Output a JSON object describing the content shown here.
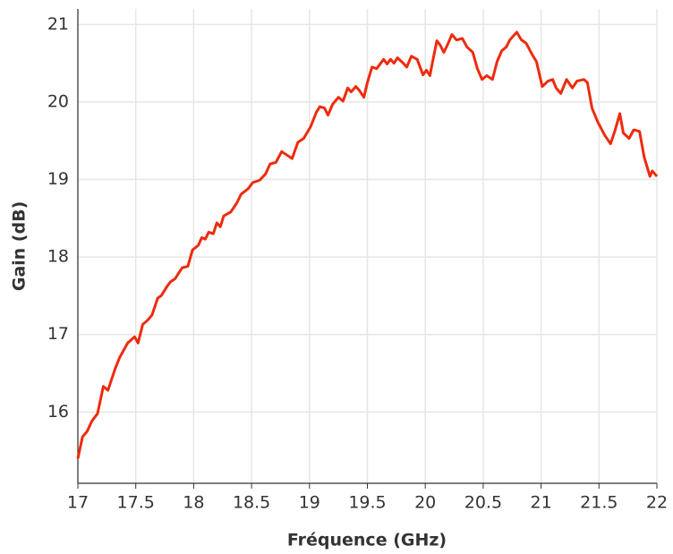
{
  "chart_data": {
    "type": "line",
    "xlabel": "Fréquence (GHz)",
    "ylabel": "Gain (dB)",
    "xlim": [
      17,
      22
    ],
    "ylim": [
      15.08,
      21.2
    ],
    "xticks": [
      17,
      17.5,
      18,
      18.5,
      19,
      19.5,
      20,
      20.5,
      21,
      21.5,
      22
    ],
    "yticks": [
      16,
      17,
      18,
      19,
      20,
      21
    ],
    "grid": true,
    "x": [
      17.0,
      17.04,
      17.08,
      17.12,
      17.17,
      17.22,
      17.26,
      17.32,
      17.36,
      17.43,
      17.46,
      17.49,
      17.52,
      17.56,
      17.6,
      17.64,
      17.69,
      17.72,
      17.77,
      17.8,
      17.84,
      17.9,
      17.95,
      17.99,
      18.04,
      18.07,
      18.1,
      18.13,
      18.17,
      18.2,
      18.23,
      18.26,
      18.32,
      18.37,
      18.41,
      18.47,
      18.51,
      18.57,
      18.62,
      18.66,
      18.71,
      18.76,
      18.8,
      18.85,
      18.9,
      18.95,
      19.01,
      19.06,
      19.09,
      19.13,
      19.16,
      19.2,
      19.25,
      19.29,
      19.33,
      19.36,
      19.4,
      19.43,
      19.47,
      19.5,
      19.54,
      19.58,
      19.64,
      19.67,
      19.7,
      19.73,
      19.76,
      19.81,
      19.84,
      19.88,
      19.93,
      19.98,
      20.01,
      20.04,
      20.07,
      20.1,
      20.13,
      20.16,
      20.19,
      20.23,
      20.27,
      20.32,
      20.36,
      20.41,
      20.45,
      20.49,
      20.53,
      20.58,
      20.62,
      20.66,
      20.7,
      20.73,
      20.76,
      20.79,
      20.83,
      20.87,
      20.92,
      20.96,
      21.01,
      21.06,
      21.1,
      21.13,
      21.17,
      21.22,
      21.27,
      21.31,
      21.37,
      21.4,
      21.44,
      21.49,
      21.55,
      21.6,
      21.64,
      21.68,
      21.71,
      21.76,
      21.8,
      21.85,
      21.89,
      21.94,
      21.96,
      22.0
    ],
    "series": [
      {
        "name": "Gain",
        "color": "#ee2b0e",
        "values": [
          15.4,
          15.68,
          15.75,
          15.88,
          15.98,
          16.33,
          16.28,
          16.55,
          16.7,
          16.89,
          16.93,
          16.97,
          16.89,
          17.13,
          17.18,
          17.25,
          17.47,
          17.5,
          17.62,
          17.68,
          17.72,
          17.86,
          17.88,
          18.09,
          18.15,
          18.25,
          18.23,
          18.32,
          18.3,
          18.44,
          18.39,
          18.53,
          18.58,
          18.69,
          18.81,
          18.88,
          18.96,
          18.99,
          19.07,
          19.2,
          19.22,
          19.36,
          19.32,
          19.27,
          19.48,
          19.53,
          19.68,
          19.87,
          19.94,
          19.92,
          19.83,
          19.97,
          20.06,
          20.01,
          20.18,
          20.13,
          20.2,
          20.15,
          20.06,
          20.25,
          20.45,
          20.43,
          20.55,
          20.49,
          20.55,
          20.5,
          20.57,
          20.5,
          20.45,
          20.59,
          20.55,
          20.35,
          20.41,
          20.34,
          20.57,
          20.79,
          20.73,
          20.64,
          20.73,
          20.87,
          20.8,
          20.82,
          20.71,
          20.64,
          20.43,
          20.29,
          20.34,
          20.29,
          20.52,
          20.66,
          20.71,
          20.8,
          20.85,
          20.9,
          20.8,
          20.76,
          20.62,
          20.52,
          20.2,
          20.27,
          20.29,
          20.18,
          20.11,
          20.29,
          20.18,
          20.27,
          20.29,
          20.25,
          19.92,
          19.74,
          19.57,
          19.46,
          19.64,
          19.85,
          19.6,
          19.53,
          19.64,
          19.62,
          19.29,
          19.04,
          19.11,
          19.04
        ]
      }
    ]
  }
}
